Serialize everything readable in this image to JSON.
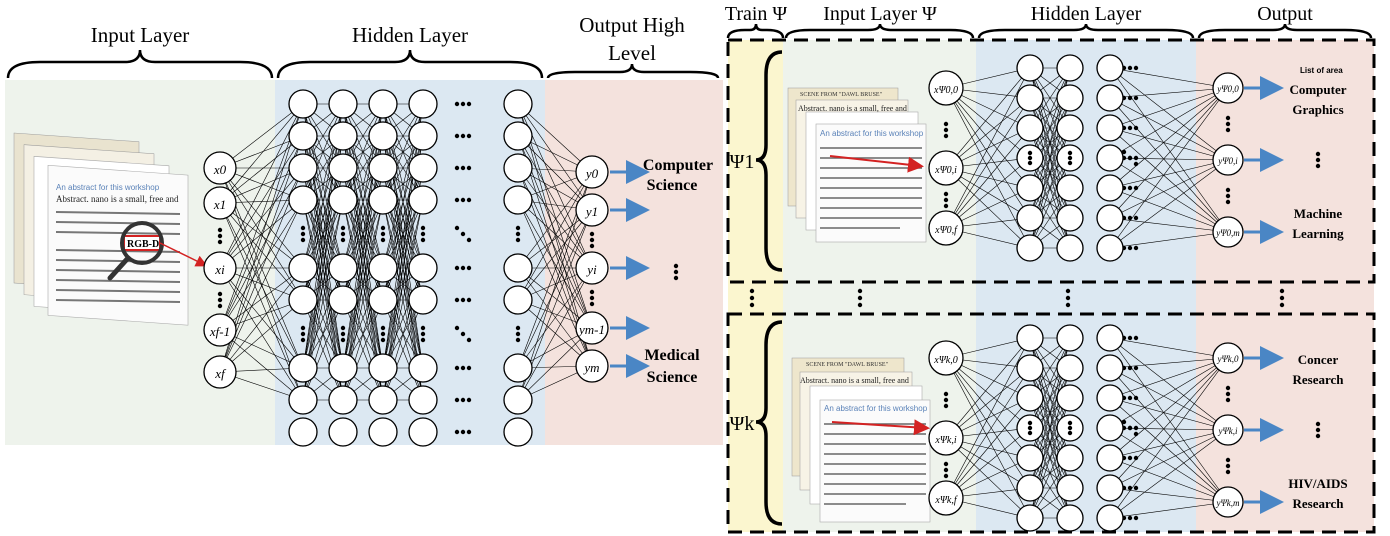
{
  "left_model": {
    "header_input": "Input Layer",
    "header_hidden": "Hidden Layer",
    "header_output_line1": "Output High",
    "header_output_line2": "Level",
    "inputs": [
      "x0",
      "x1",
      "xi",
      "xf-1",
      "xf"
    ],
    "outputs": [
      "y0",
      "y1",
      "yi",
      "ym-1",
      "ym"
    ],
    "class_top_line1": "Computer",
    "class_top_line2": "Science",
    "class_bottom_line1": "Medical",
    "class_bottom_line2": "Science",
    "doc_title": "An abstract for this workshop",
    "doc_abstract": "Abstract. nano is a small, free and",
    "doc_highlight": "RGB-D"
  },
  "right_model": {
    "header_train": "Train Ψ",
    "header_input": "Input Layer Ψ",
    "header_hidden": "Hidden Layer",
    "header_output": "Output",
    "list_of_area": "List of area",
    "psi_top": "Ψ1",
    "psi_bottom": "Ψk",
    "top_inputs": [
      "xΨ0,0",
      "xΨ0,i",
      "xΨ0,f"
    ],
    "top_outputs": [
      "yΨ0,0",
      "yΨ0,i",
      "yΨ0,m"
    ],
    "bottom_inputs": [
      "xΨk,0",
      "xΨk,i",
      "xΨk,f"
    ],
    "bottom_outputs": [
      "yΨk,0",
      "yΨk,i",
      "yΨk,m"
    ],
    "top_areas": [
      [
        "Computer",
        "Graphics"
      ],
      [
        "Machine",
        "Learning"
      ]
    ],
    "bottom_areas": [
      [
        "Concer",
        "Research"
      ],
      [
        "HIV/AIDS",
        "Research"
      ]
    ],
    "doc_title": "An abstract for this workshop",
    "doc_abstract": "Abstract. nano is a small, free and",
    "doc_scene": "SCENE FROM \"DAWL BRUSE\""
  },
  "colors": {
    "input_bg": "#eef3ec",
    "hidden_bg": "#dce8f2",
    "output_bg": "#f4e2dd",
    "train_bg": "#fbf6cf",
    "arrow": "#4a86c5",
    "highlight": "#d32222"
  }
}
